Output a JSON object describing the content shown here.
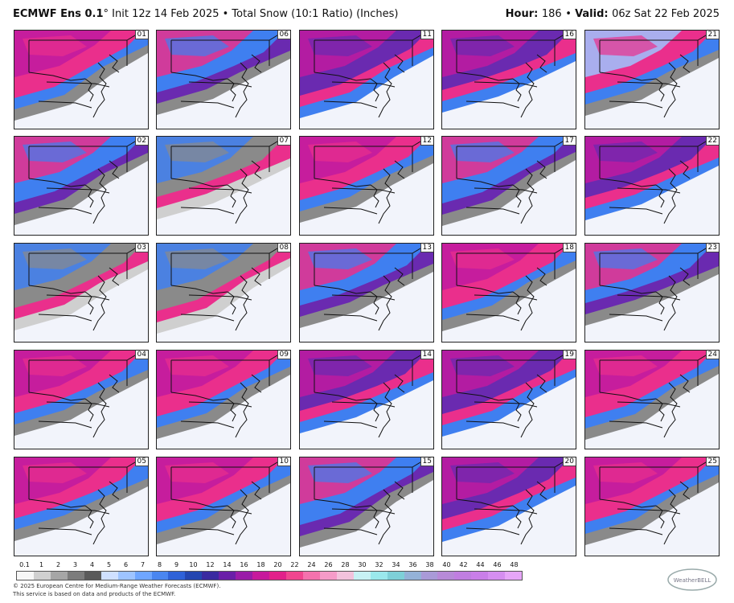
{
  "header": {
    "model": "ECMWF Ens 0.1",
    "degree": "°",
    "rest": " Init 12z 14 Feb 2025 • Total Snow (10:1 Ratio) (Inches)",
    "hour_label": "Hour:",
    "hour_value": "186",
    "valid_label": "Valid:",
    "valid_value": "06z Sat 22 Feb 2025"
  },
  "panels": [
    {
      "num": "01",
      "theme": "pink"
    },
    {
      "num": "06",
      "theme": "blue"
    },
    {
      "num": "11",
      "theme": "purple"
    },
    {
      "num": "16",
      "theme": "purple"
    },
    {
      "num": "21",
      "theme": "pinkblue"
    },
    {
      "num": "02",
      "theme": "blue"
    },
    {
      "num": "07",
      "theme": "gray"
    },
    {
      "num": "12",
      "theme": "pink"
    },
    {
      "num": "17",
      "theme": "blue"
    },
    {
      "num": "22",
      "theme": "purple"
    },
    {
      "num": "03",
      "theme": "gray"
    },
    {
      "num": "08",
      "theme": "gray"
    },
    {
      "num": "13",
      "theme": "blue"
    },
    {
      "num": "18",
      "theme": "pink"
    },
    {
      "num": "23",
      "theme": "blue"
    },
    {
      "num": "04",
      "theme": "pink"
    },
    {
      "num": "09",
      "theme": "pink"
    },
    {
      "num": "14",
      "theme": "purple"
    },
    {
      "num": "19",
      "theme": "purple"
    },
    {
      "num": "24",
      "theme": "pink"
    },
    {
      "num": "05",
      "theme": "pink"
    },
    {
      "num": "10",
      "theme": "pink"
    },
    {
      "num": "15",
      "theme": "blue"
    },
    {
      "num": "20",
      "theme": "purple"
    },
    {
      "num": "25",
      "theme": "pink"
    }
  ],
  "legend": {
    "ticks": [
      "0.1",
      "1",
      "2",
      "3",
      "4",
      "5",
      "6",
      "7",
      "8",
      "9",
      "10",
      "12",
      "14",
      "16",
      "18",
      "20",
      "22",
      "24",
      "26",
      "28",
      "30",
      "32",
      "34",
      "36",
      "38",
      "40",
      "42",
      "44",
      "46",
      "48"
    ],
    "colors": [
      "#f7f7f7",
      "#d0d0d0",
      "#a6a6a6",
      "#7c7c7c",
      "#5a5a5a",
      "#cfe0ff",
      "#9ec4ff",
      "#6fa6ff",
      "#4a86f0",
      "#2f62d8",
      "#2446b0",
      "#3a2aa0",
      "#6a1fa8",
      "#9a1ca8",
      "#c7199c",
      "#e2218a",
      "#f0468f",
      "#f472ad",
      "#f59bc8",
      "#f2c2dc",
      "#c7f1f4",
      "#9ae8ec",
      "#7ed0d8",
      "#94b2d8",
      "#a99ad8",
      "#b78ad8",
      "#c07ee0",
      "#c97ee8",
      "#d58ef0",
      "#e6a6f8"
    ]
  },
  "footer": {
    "line1": "© 2025 European Centre for Medium-Range Weather Forecasts (ECMWF).",
    "line2": "This service is based on data and products of the ECMWF."
  },
  "logo_text": "WeatherBELL",
  "colors": {
    "pink": "#ea2f8c",
    "magenta": "#c01aa0",
    "purple": "#6a2ab0",
    "blue": "#3f7ff0",
    "lightblue": "#9ec4ff",
    "gray": "#8a8a8a",
    "lightgray": "#cfcfcf",
    "background": "#f2f4fb"
  }
}
